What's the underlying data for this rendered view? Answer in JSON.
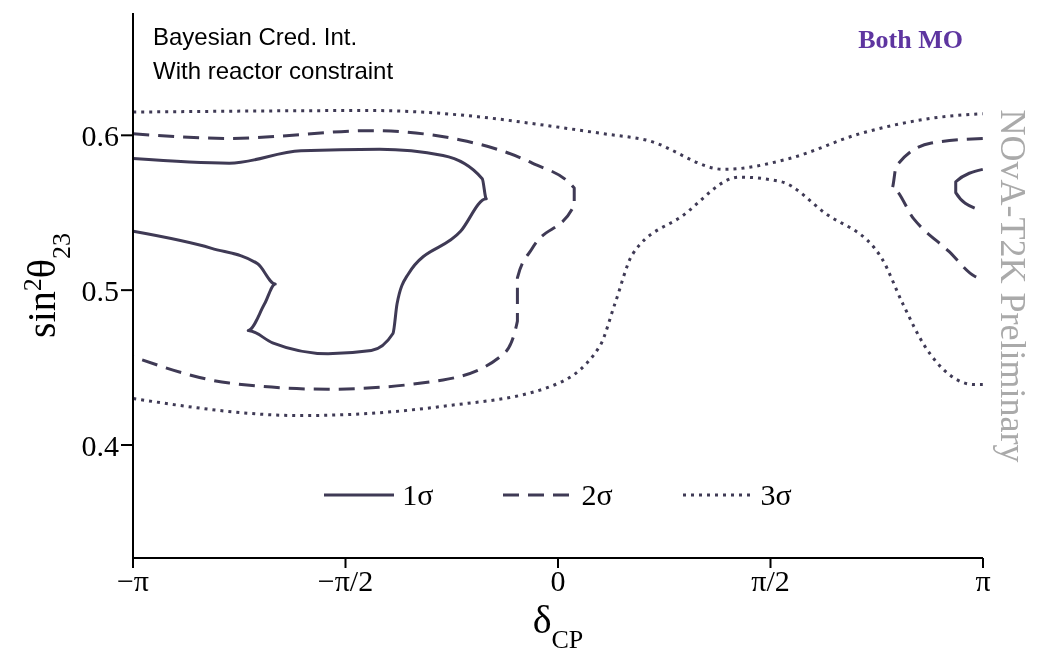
{
  "chart_data": {
    "type": "line",
    "xlabel": "δ$_{CP}$",
    "ylabel": "sin$^{2}$θ$_{23}$",
    "annotations": [
      "Bayesian Cred. Int.",
      "With reactor constraint",
      "Both MO",
      "NOvA-T2K Preliminary"
    ],
    "xlim": [
      -3.1416,
      3.1416
    ],
    "xticks": [
      {
        "value": -3.1416,
        "label": "−π"
      },
      {
        "value": -1.5708,
        "label": "−π/2"
      },
      0,
      {
        "value": 1.5708,
        "label": "π/2"
      },
      {
        "value": 3.1416,
        "label": "π"
      }
    ],
    "ylim": [
      0.327,
      0.679
    ],
    "yticks": [
      0.4,
      0.5,
      0.6
    ],
    "legend": "bottom",
    "marker": "none",
    "series": [
      {
        "name": "1σ",
        "color": "#3f3a55",
        "line_style": "solid",
        "x": [
          -3.14,
          -2.43,
          -1.9,
          -1.32,
          -0.85,
          -0.56,
          -0.53,
          -0.72,
          -1.11,
          -1.19,
          -1.22,
          -1.38,
          -1.7,
          -2.11,
          -2.29,
          -2.17,
          -2.09,
          -2.22,
          -2.56,
          -3.14
        ],
        "values": [
          0.585,
          0.582,
          0.59,
          0.591,
          0.587,
          0.572,
          0.559,
          0.538,
          0.51,
          0.491,
          0.472,
          0.461,
          0.459,
          0.466,
          0.474,
          0.491,
          0.504,
          0.517,
          0.527,
          0.538
        ]
      },
      {
        "name": "2σ",
        "color": "#3f3a55",
        "line_style": "dashed",
        "x": [
          -3.14,
          -2.43,
          -1.38,
          -0.72,
          -0.19,
          0.12,
          0.12,
          -0.19,
          -0.3,
          -0.3,
          -0.4,
          -0.85,
          -1.7,
          -2.43,
          -3.14
        ],
        "values": [
          0.601,
          0.598,
          0.603,
          0.597,
          0.582,
          0.566,
          0.555,
          0.527,
          0.508,
          0.48,
          0.459,
          0.442,
          0.436,
          0.44,
          0.457
        ]
      },
      {
        "name": "3σ",
        "color": "#3f3a55",
        "line_style": "dotted",
        "x": [
          -3.14,
          -1.38,
          -0.59,
          -0.14,
          0.34,
          0.65,
          1.23,
          1.71,
          2.23,
          2.76,
          3.14
        ],
        "values": [
          0.615,
          0.616,
          0.612,
          0.607,
          0.601,
          0.597,
          0.578,
          0.585,
          0.601,
          0.611,
          0.614
        ]
      },
      {
        "color": "#3f3a55",
        "line_style": "dotted",
        "x": [
          -3.14,
          -1.9,
          -0.85,
          -0.08,
          0.31,
          0.42,
          0.55,
          0.92,
          1.34,
          1.65,
          1.97,
          2.39,
          2.55,
          2.71,
          3.08,
          3.14
        ],
        "values": [
          0.43,
          0.419,
          0.425,
          0.437,
          0.464,
          0.491,
          0.523,
          0.548,
          0.573,
          0.57,
          0.55,
          0.521,
          0.491,
          0.464,
          0.439,
          0.439
        ]
      },
      {
        "color": "#3f3a55",
        "line_style": "dashed",
        "x": [
          3.14,
          2.76,
          2.5,
          2.47,
          2.63,
          2.89,
          3.08,
          3.14
        ],
        "values": [
          0.598,
          0.595,
          0.58,
          0.566,
          0.546,
          0.525,
          0.509,
          0.507
        ]
      },
      {
        "color": "#3f3a55",
        "line_style": "solid",
        "x": [
          3.14,
          2.94,
          2.94,
          3.08
        ],
        "values": [
          0.578,
          0.57,
          0.563,
          0.553
        ]
      }
    ]
  }
}
